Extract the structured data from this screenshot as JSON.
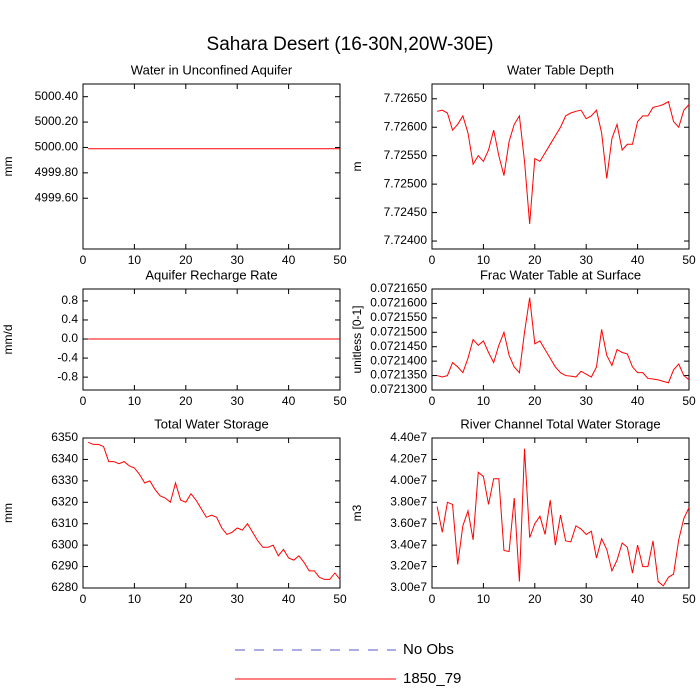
{
  "title": "Sahara Desert (16-30N,20W-30E)",
  "legend": [
    {
      "name": "No Obs",
      "color": "#5a5ac8",
      "dashed": true
    },
    {
      "name": "1850_79",
      "color": "#ff0000",
      "dashed": false
    }
  ],
  "chart_data": [
    {
      "type": "line",
      "title": "Water in Unconfined Aquifer",
      "y_label": "mm",
      "x": [
        1,
        2,
        3,
        4,
        5,
        6,
        7,
        8,
        9,
        10,
        11,
        12,
        13,
        14,
        15,
        16,
        17,
        18,
        19,
        20,
        21,
        22,
        23,
        24,
        25,
        26,
        27,
        28,
        29,
        30,
        31,
        32,
        33,
        34,
        35,
        36,
        37,
        38,
        39,
        40,
        41,
        42,
        43,
        44,
        45,
        46,
        47,
        48,
        49,
        50
      ],
      "series": [
        {
          "name": "1850_79",
          "color": "#ff0000",
          "values": [
            4999.99,
            4999.99,
            4999.99,
            4999.99,
            4999.99,
            4999.99,
            4999.99,
            4999.99,
            4999.99,
            4999.99,
            4999.99,
            4999.99,
            4999.99,
            4999.99,
            4999.99,
            4999.99,
            4999.99,
            4999.99,
            4999.99,
            4999.99,
            4999.99,
            4999.99,
            4999.99,
            4999.99,
            4999.99,
            4999.99,
            4999.99,
            4999.99,
            4999.99,
            4999.99,
            4999.99,
            4999.99,
            4999.99,
            4999.99,
            4999.99,
            4999.99,
            4999.99,
            4999.99,
            4999.99,
            4999.99,
            4999.99,
            4999.99,
            4999.99,
            4999.99,
            4999.99,
            4999.99,
            4999.99,
            4999.99,
            4999.99,
            4999.99
          ]
        }
      ],
      "xlim": [
        0,
        50
      ],
      "xticks": [
        0,
        10,
        20,
        30,
        40,
        50
      ],
      "ylim": [
        4999.2,
        5000.5
      ],
      "yticks": [
        {
          "value": 4999.6,
          "label": "4999.60"
        },
        {
          "value": 4999.8,
          "label": "4999.80"
        },
        {
          "value": 5000.0,
          "label": "5000.00"
        },
        {
          "value": 5000.2,
          "label": "5000.20"
        },
        {
          "value": 5000.4,
          "label": "5000.40"
        }
      ]
    },
    {
      "type": "line",
      "title": "Water Table Depth",
      "y_label": "m",
      "x": [
        1,
        2,
        3,
        4,
        5,
        6,
        7,
        8,
        9,
        10,
        11,
        12,
        13,
        14,
        15,
        16,
        17,
        18,
        19,
        20,
        21,
        22,
        23,
        24,
        25,
        26,
        27,
        28,
        29,
        30,
        31,
        32,
        33,
        34,
        35,
        36,
        37,
        38,
        39,
        40,
        41,
        42,
        43,
        44,
        45,
        46,
        47,
        48,
        49,
        50
      ],
      "series": [
        {
          "name": "1850_79",
          "color": "#ff0000",
          "values": [
            7.72628,
            7.7263,
            7.72625,
            7.72595,
            7.72605,
            7.7262,
            7.7259,
            7.72535,
            7.7255,
            7.7254,
            7.7256,
            7.72595,
            7.7255,
            7.72515,
            7.72575,
            7.72605,
            7.7262,
            7.7254,
            7.7243,
            7.72545,
            7.7254,
            7.72555,
            7.7257,
            7.72585,
            7.726,
            7.7262,
            7.72625,
            7.72628,
            7.7263,
            7.72615,
            7.7262,
            7.7263,
            7.7259,
            7.7251,
            7.7258,
            7.72605,
            7.7256,
            7.7257,
            7.7257,
            7.7261,
            7.7262,
            7.7262,
            7.72635,
            7.72637,
            7.7264,
            7.72645,
            7.7261,
            7.726,
            7.7263,
            7.7264
          ]
        }
      ],
      "xlim": [
        0,
        50
      ],
      "xticks": [
        0,
        10,
        20,
        30,
        40,
        50
      ],
      "ylim": [
        7.72386,
        7.72676
      ],
      "yticks": [
        {
          "value": 7.724,
          "label": "7.72400"
        },
        {
          "value": 7.7245,
          "label": "7.72450"
        },
        {
          "value": 7.725,
          "label": "7.72500"
        },
        {
          "value": 7.7255,
          "label": "7.72550"
        },
        {
          "value": 7.726,
          "label": "7.72600"
        },
        {
          "value": 7.7265,
          "label": "7.72650"
        }
      ]
    },
    {
      "type": "line",
      "title": "Aquifer Recharge Rate",
      "y_label": "mm/d",
      "x": [
        1,
        2,
        3,
        4,
        5,
        6,
        7,
        8,
        9,
        10,
        11,
        12,
        13,
        14,
        15,
        16,
        17,
        18,
        19,
        20,
        21,
        22,
        23,
        24,
        25,
        26,
        27,
        28,
        29,
        30,
        31,
        32,
        33,
        34,
        35,
        36,
        37,
        38,
        39,
        40,
        41,
        42,
        43,
        44,
        45,
        46,
        47,
        48,
        49,
        50
      ],
      "series": [
        {
          "name": "1850_79",
          "color": "#ff0000",
          "values": [
            0,
            0,
            0,
            0,
            0,
            0,
            0,
            0,
            0,
            0,
            0,
            0,
            0,
            0,
            0,
            0,
            0,
            0,
            0,
            0,
            0,
            0,
            0,
            0,
            0,
            0,
            0,
            0,
            0,
            0,
            0,
            0,
            0,
            0,
            0,
            0,
            0,
            0,
            0,
            0,
            0,
            0,
            0,
            0,
            0,
            0,
            0,
            0,
            0,
            0
          ]
        }
      ],
      "xlim": [
        0,
        50
      ],
      "xticks": [
        0,
        10,
        20,
        30,
        40,
        50
      ],
      "ylim": [
        -1.07,
        1.05
      ],
      "yticks": [
        -0.8,
        -0.4,
        {
          "value": 0,
          "label": "0.0"
        },
        0.4,
        0.8
      ]
    },
    {
      "type": "line",
      "title": "Frac Water Table at Surface",
      "y_label": "unitless [0-1]",
      "x": [
        1,
        2,
        3,
        4,
        5,
        6,
        7,
        8,
        9,
        10,
        11,
        12,
        13,
        14,
        15,
        16,
        17,
        18,
        19,
        20,
        21,
        22,
        23,
        24,
        25,
        26,
        27,
        28,
        29,
        30,
        31,
        32,
        33,
        34,
        35,
        36,
        37,
        38,
        39,
        40,
        41,
        42,
        43,
        44,
        45,
        46,
        47,
        48,
        49,
        50
      ],
      "series": [
        {
          "name": "1850_79",
          "color": "#ff0000",
          "values": [
            0.072135,
            0.0721345,
            0.072135,
            0.0721395,
            0.072138,
            0.072136,
            0.072141,
            0.0721475,
            0.0721455,
            0.072147,
            0.072143,
            0.0721395,
            0.0721455,
            0.07215,
            0.072142,
            0.072138,
            0.072136,
            0.07215,
            0.072162,
            0.072146,
            0.072147,
            0.072144,
            0.072141,
            0.072138,
            0.072136,
            0.072135,
            0.0721348,
            0.0721345,
            0.0721365,
            0.0721355,
            0.0721345,
            0.072138,
            0.072151,
            0.072142,
            0.0721385,
            0.072144,
            0.072143,
            0.0721425,
            0.072138,
            0.072136,
            0.072136,
            0.072134,
            0.0721338,
            0.0721335,
            0.072133,
            0.0721325,
            0.072137,
            0.072139,
            0.072135,
            0.0721335
          ]
        }
      ],
      "xlim": [
        0,
        50
      ],
      "xticks": [
        0,
        10,
        20,
        30,
        40,
        50
      ],
      "ylim": [
        0.07213,
        0.072165
      ],
      "yticks": [
        {
          "value": 0.07213,
          "label": "0.0721300"
        },
        {
          "value": 0.072135,
          "label": "0.0721350"
        },
        {
          "value": 0.07214,
          "label": "0.0721400"
        },
        {
          "value": 0.072145,
          "label": "0.0721450"
        },
        {
          "value": 0.07215,
          "label": "0.0721500"
        },
        {
          "value": 0.072155,
          "label": "0.0721550"
        },
        {
          "value": 0.07216,
          "label": "0.0721600"
        },
        {
          "value": 0.072165,
          "label": "0.0721650"
        }
      ]
    },
    {
      "type": "line",
      "title": "Total Water Storage",
      "y_label": "mm",
      "x": [
        1,
        2,
        3,
        4,
        5,
        6,
        7,
        8,
        9,
        10,
        11,
        12,
        13,
        14,
        15,
        16,
        17,
        18,
        19,
        20,
        21,
        22,
        23,
        24,
        25,
        26,
        27,
        28,
        29,
        30,
        31,
        32,
        33,
        34,
        35,
        36,
        37,
        38,
        39,
        40,
        41,
        42,
        43,
        44,
        45,
        46,
        47,
        48,
        49,
        50
      ],
      "series": [
        {
          "name": "1850_79",
          "color": "#ff0000",
          "values": [
            6348,
            6347,
            6347,
            6346,
            6339,
            6339,
            6338,
            6339,
            6337,
            6336,
            6333,
            6329,
            6330,
            6326,
            6323,
            6322,
            6320,
            6329,
            6321,
            6320,
            6324,
            6321,
            6317,
            6313,
            6314,
            6313,
            6308,
            6305,
            6306,
            6308,
            6307,
            6310,
            6306,
            6302,
            6299,
            6299,
            6300,
            6295,
            6298,
            6294,
            6293,
            6295,
            6292,
            6288,
            6288,
            6285,
            6284,
            6284,
            6287,
            6284
          ]
        }
      ],
      "xlim": [
        0,
        50
      ],
      "xticks": [
        0,
        10,
        20,
        30,
        40,
        50
      ],
      "ylim": [
        6280,
        6350
      ],
      "yticks": [
        6280,
        6290,
        6300,
        6310,
        6320,
        6330,
        6340,
        6350
      ]
    },
    {
      "type": "line",
      "title": "River Channel Total Water Storage",
      "y_label": "m3",
      "x": [
        1,
        2,
        3,
        4,
        5,
        6,
        7,
        8,
        9,
        10,
        11,
        12,
        13,
        14,
        15,
        16,
        17,
        18,
        19,
        20,
        21,
        22,
        23,
        24,
        25,
        26,
        27,
        28,
        29,
        30,
        31,
        32,
        33,
        34,
        35,
        36,
        37,
        38,
        39,
        40,
        41,
        42,
        43,
        44,
        45,
        46,
        47,
        48,
        49,
        50
      ],
      "series": [
        {
          "name": "1850_79",
          "color": "#ff0000",
          "values": [
            37600000,
            35200000,
            38000000,
            37800000,
            32200000,
            35800000,
            37200000,
            34500000,
            40800000,
            40400000,
            37800000,
            40200000,
            40200000,
            33500000,
            33400000,
            38400000,
            30600000,
            43000000,
            34700000,
            36000000,
            36700000,
            35000000,
            38200000,
            34000000,
            36800000,
            34400000,
            34300000,
            35800000,
            35500000,
            35000000,
            35300000,
            32800000,
            34600000,
            33600000,
            31600000,
            32600000,
            34200000,
            33800000,
            31400000,
            34000000,
            32000000,
            32000000,
            34400000,
            30600000,
            30200000,
            31000000,
            31300000,
            34500000,
            36500000,
            37500000
          ]
        }
      ],
      "xlim": [
        0,
        50
      ],
      "xticks": [
        0,
        10,
        20,
        30,
        40,
        50
      ],
      "ylim": [
        30000000,
        44000000
      ],
      "yticks": [
        {
          "value": 30000000,
          "label": "3.00e7"
        },
        {
          "value": 32000000,
          "label": "3.20e7"
        },
        {
          "value": 34000000,
          "label": "3.40e7"
        },
        {
          "value": 36000000,
          "label": "3.60e7"
        },
        {
          "value": 38000000,
          "label": "3.80e7"
        },
        {
          "value": 40000000,
          "label": "4.00e7"
        },
        {
          "value": 42000000,
          "label": "4.20e7"
        },
        {
          "value": 44000000,
          "label": "4.40e7"
        }
      ]
    }
  ]
}
